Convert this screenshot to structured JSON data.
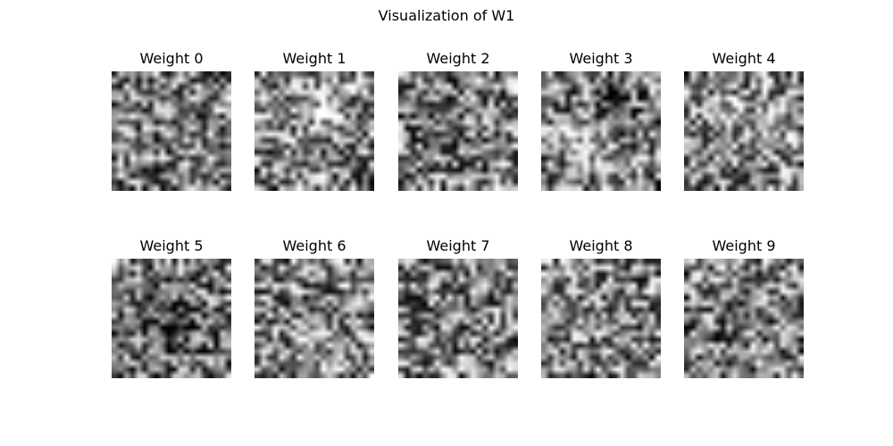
{
  "chart_data": {
    "type": "heatmap",
    "title": "Visualization of W1",
    "colormap": "gray",
    "grid_size": [
      20,
      20
    ],
    "value_range": [
      0,
      1
    ],
    "panels": [
      {
        "label": "Weight 0",
        "seed": 101,
        "blobs": []
      },
      {
        "label": "Weight 1",
        "seed": 202,
        "blobs": [
          {
            "cx": 11.5,
            "cy": 5.0,
            "r": 3.0,
            "amp": 0.25
          }
        ]
      },
      {
        "label": "Weight 2",
        "seed": 303,
        "blobs": [
          {
            "cx": 5.0,
            "cy": 7.0,
            "r": 3.5,
            "amp": -0.2
          }
        ]
      },
      {
        "label": "Weight 3",
        "seed": 404,
        "blobs": [
          {
            "cx": 11.5,
            "cy": 6.5,
            "r": 2.5,
            "amp": -0.4
          },
          {
            "cx": 7.0,
            "cy": 11.0,
            "r": 3.0,
            "amp": 0.3
          }
        ]
      },
      {
        "label": "Weight 4",
        "seed": 505,
        "blobs": [
          {
            "cx": 10.0,
            "cy": 8.5,
            "r": 3.5,
            "amp": 0.2
          }
        ]
      },
      {
        "label": "Weight 5",
        "seed": 606,
        "blobs": [
          {
            "cx": 10.0,
            "cy": 10.0,
            "r": 4.0,
            "amp": -0.3
          }
        ]
      },
      {
        "label": "Weight 6",
        "seed": 707,
        "blobs": [
          {
            "cx": 10.0,
            "cy": 13.0,
            "r": 3.0,
            "amp": 0.2
          }
        ]
      },
      {
        "label": "Weight 7",
        "seed": 808,
        "blobs": []
      },
      {
        "label": "Weight 8",
        "seed": 909,
        "blobs": []
      },
      {
        "label": "Weight 9",
        "seed": 1111,
        "blobs": [
          {
            "cx": 9.0,
            "cy": 8.5,
            "r": 2.5,
            "amp": -0.15
          }
        ]
      }
    ]
  }
}
